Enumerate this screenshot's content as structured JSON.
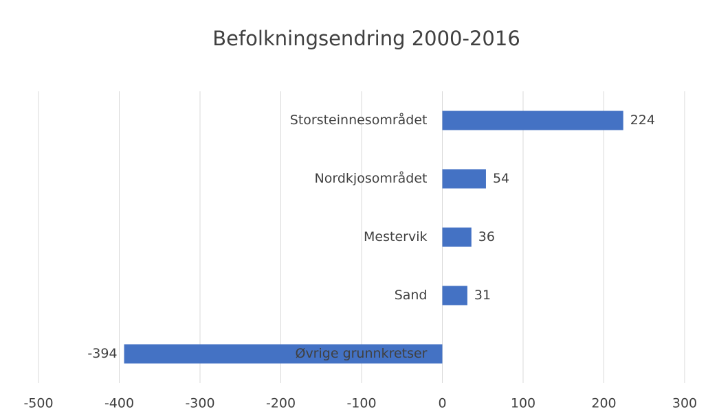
{
  "chart_data": {
    "type": "bar",
    "orientation": "horizontal",
    "title": "Befolkningsendring 2000-2016",
    "categories": [
      "Storsteinnesområdet",
      "Nordkjosområdet",
      "Mestervik",
      "Sand",
      "Øvrige grunnkretser"
    ],
    "values": [
      224,
      54,
      36,
      31,
      -394
    ],
    "color": "#4472c4",
    "xlim": [
      -500,
      300
    ],
    "xticks": [
      -500,
      -400,
      -300,
      -200,
      -100,
      0,
      100,
      200,
      300
    ],
    "grid": true
  }
}
